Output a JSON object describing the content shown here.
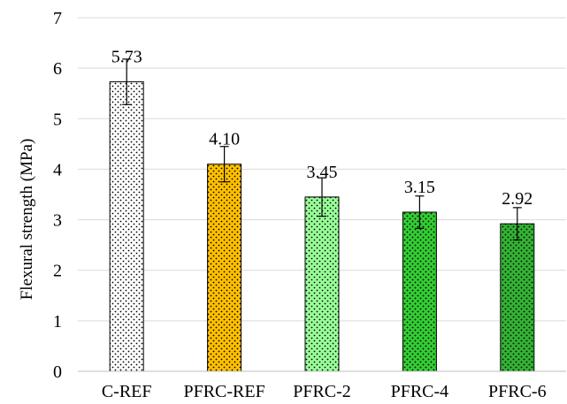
{
  "chart_data": {
    "type": "bar",
    "title": "",
    "xlabel": "",
    "ylabel": "Flexural strength (MPa)",
    "categories": [
      "C-REF",
      "PFRC-REF",
      "PFRC-2",
      "PFRC-4",
      "PFRC-6"
    ],
    "values": [
      5.73,
      4.1,
      3.45,
      3.15,
      2.92
    ],
    "value_labels": [
      "5.73",
      "4.10",
      "3.45",
      "3.15",
      "2.92"
    ],
    "error": [
      0.45,
      0.35,
      0.38,
      0.32,
      0.32
    ],
    "ylim": [
      0,
      7
    ],
    "yticks": [
      0,
      1,
      2,
      3,
      4,
      5,
      6,
      7
    ],
    "grid": true,
    "bar_colors": [
      "#ffffff",
      "#ffc000",
      "#99ff99",
      "#33cc33",
      "#33b233"
    ],
    "pattern": "dotted"
  }
}
